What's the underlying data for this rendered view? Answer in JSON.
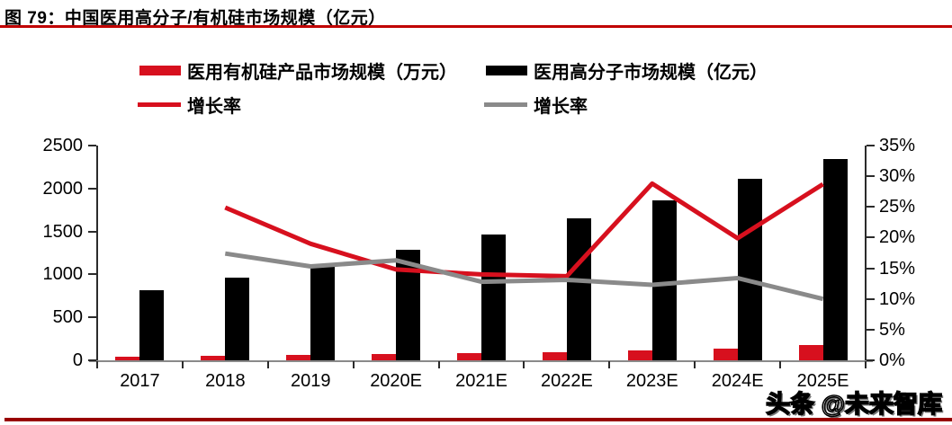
{
  "title": "图 79：中国医用高分子/有机硅市场规模（亿元）",
  "watermark": "头条 @未来智库",
  "colors": {
    "red": "#D7101E",
    "black": "#000000",
    "gray": "#8A8A8A",
    "title_underline": "#C00000",
    "bottom_rule": "#990000",
    "axis_line": "#2B2B2B",
    "baseline": "#8A8A8A"
  },
  "legend": {
    "items": [
      {
        "label": "医用有机硅产品市场规模（万元）",
        "swatch": "bar",
        "color": "#D7101E"
      },
      {
        "label": "医用高分子市场规模（亿元）",
        "swatch": "bar",
        "color": "#000000"
      },
      {
        "label": "增长率",
        "swatch": "line",
        "color": "#D7101E"
      },
      {
        "label": "增长率",
        "swatch": "line",
        "color": "#8A8A8A"
      }
    ]
  },
  "chart_data": {
    "type": "combo-bar-line",
    "categories": [
      "2017",
      "2018",
      "2019",
      "2020E",
      "2021E",
      "2022E",
      "2023E",
      "2024E",
      "2025E"
    ],
    "series": [
      {
        "name": "医用有机硅产品市场规模（万元）",
        "type": "bar",
        "axis": "left",
        "color": "#D7101E",
        "values": [
          40,
          50,
          62,
          72,
          82,
          93,
          110,
          140,
          175
        ]
      },
      {
        "name": "医用高分子市场规模（亿元）",
        "type": "bar",
        "axis": "left",
        "color": "#000000",
        "values": [
          820,
          960,
          1100,
          1290,
          1460,
          1650,
          1860,
          2110,
          2340
        ]
      },
      {
        "name": "增长率（医用有机硅）",
        "type": "line",
        "axis": "right",
        "color": "#D7101E",
        "values": [
          null,
          24.9,
          19.0,
          14.8,
          14.0,
          13.7,
          28.8,
          19.9,
          28.7
        ]
      },
      {
        "name": "增长率（医用高分子）",
        "type": "line",
        "axis": "right",
        "color": "#8A8A8A",
        "values": [
          null,
          17.4,
          15.3,
          16.3,
          12.8,
          13.1,
          12.3,
          13.4,
          10.0
        ]
      }
    ],
    "left_axis": {
      "min": 0,
      "max": 2500,
      "step": 500,
      "ticks": [
        "0",
        "500",
        "1000",
        "1500",
        "2000",
        "2500"
      ]
    },
    "right_axis": {
      "min": 0,
      "max": 35,
      "step": 5,
      "ticks": [
        "0%",
        "5%",
        "10%",
        "15%",
        "20%",
        "25%",
        "30%",
        "35%"
      ]
    },
    "grid": false,
    "legend_position": "top"
  }
}
